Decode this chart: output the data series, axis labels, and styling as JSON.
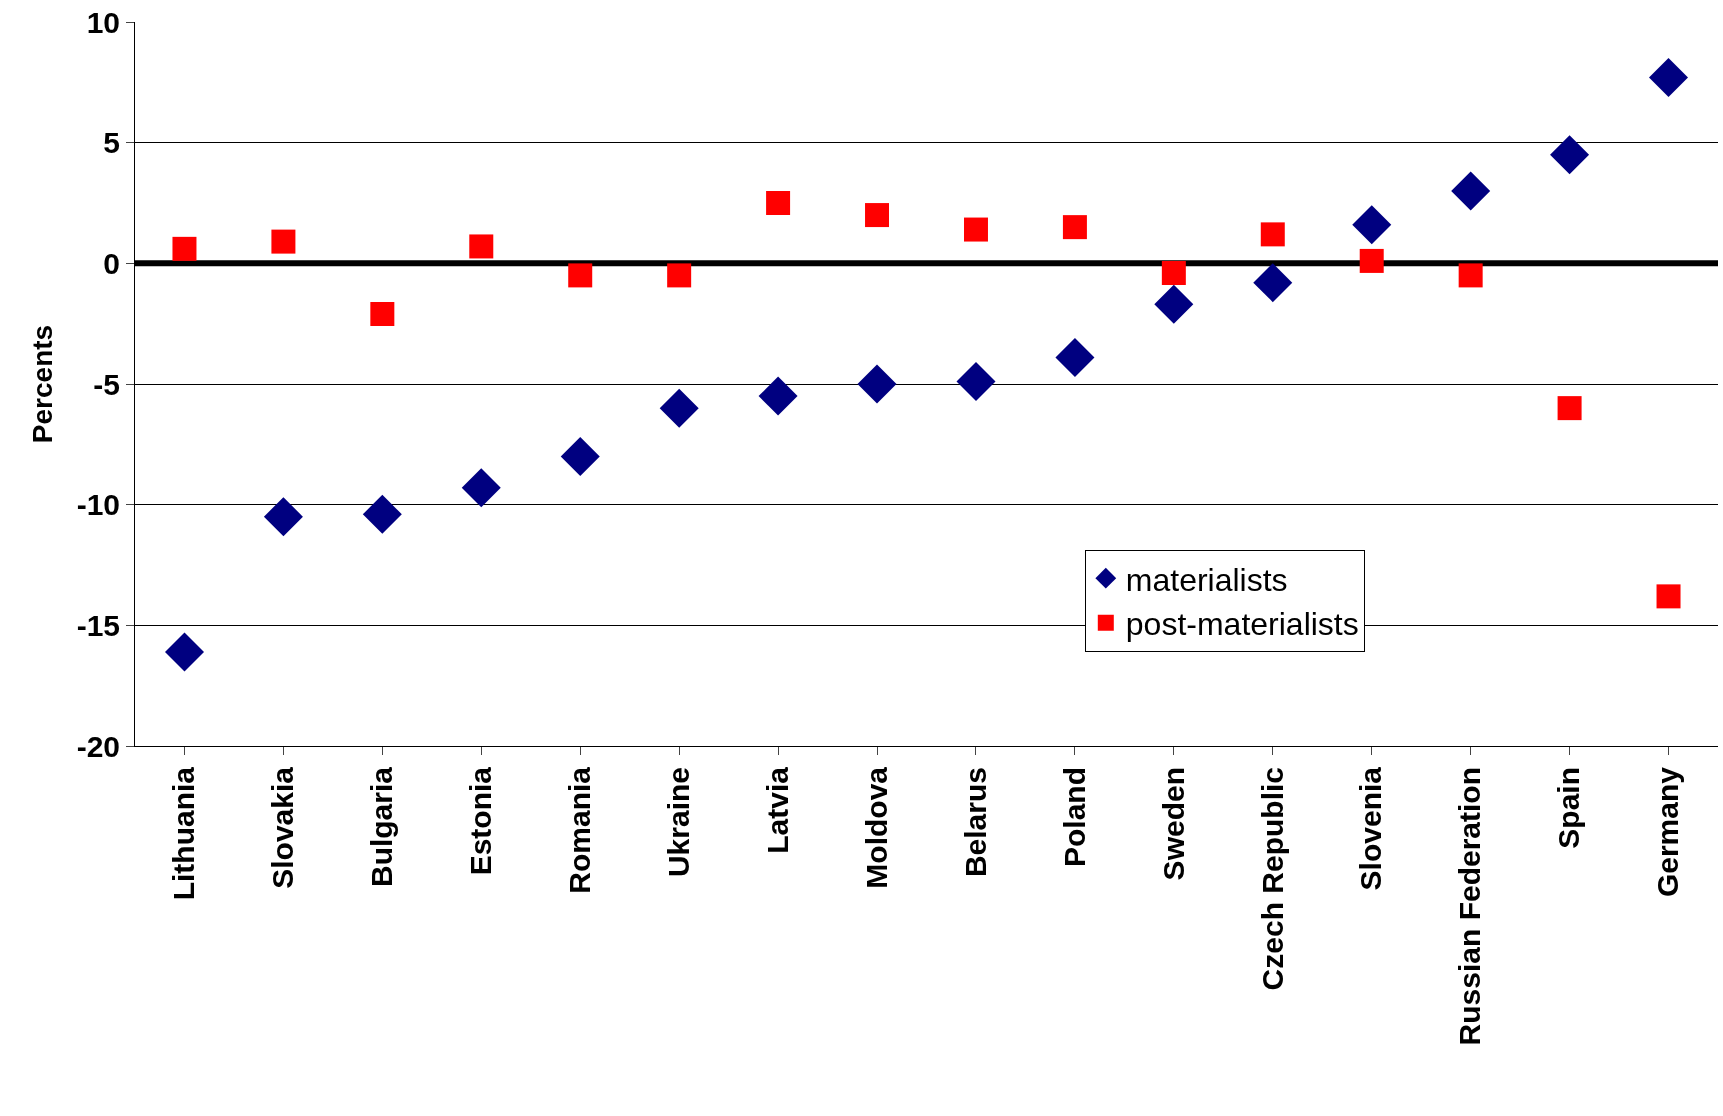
{
  "chart_data": {
    "type": "scatter",
    "ylabel": "Percents",
    "categories": [
      "Lithuania",
      "Slovakia",
      "Bulgaria",
      "Estonia",
      "Romania",
      "Ukraine",
      "Latvia",
      "Moldova",
      "Belarus",
      "Poland",
      "Sweden",
      "Czech Republic",
      "Slovenia",
      "Russian Federation",
      "Spain",
      "Germany"
    ],
    "series": [
      {
        "name": "materialists",
        "color": "#000080",
        "marker": "diamond",
        "values": [
          -16.1,
          -10.5,
          -10.4,
          -9.3,
          -8.0,
          -6.0,
          -5.5,
          -5.0,
          -4.9,
          -3.9,
          -1.7,
          -0.8,
          1.6,
          3.0,
          4.5,
          7.7
        ]
      },
      {
        "name": "post-materialists",
        "color": "#ff0000",
        "marker": "square",
        "values": [
          0.6,
          0.9,
          -2.1,
          0.7,
          -0.5,
          -0.5,
          2.5,
          2.0,
          1.4,
          1.5,
          -0.4,
          1.2,
          0.1,
          -0.5,
          -6.0,
          -13.8
        ]
      }
    ],
    "ylim": [
      -20,
      10
    ],
    "yticks": [
      -20,
      -15,
      -10,
      -5,
      0,
      5,
      10
    ],
    "grid": "y",
    "legend": "bottom right",
    "ref_lines": [
      {
        "axis": "y",
        "value": 0,
        "color": "#000000"
      }
    ]
  }
}
